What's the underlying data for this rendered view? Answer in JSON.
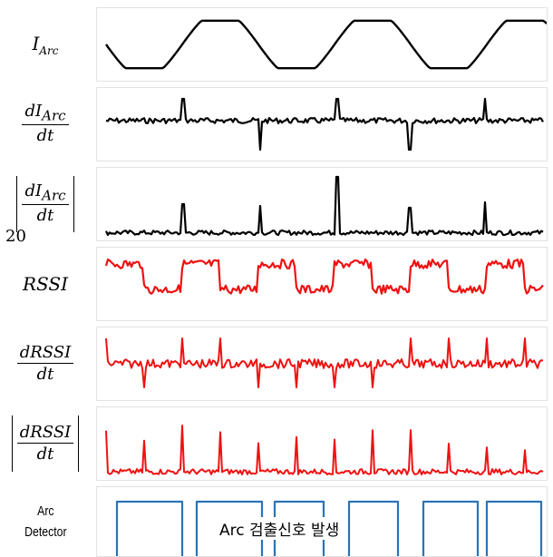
{
  "rows": [
    {
      "id": "i_arc",
      "label_main": "I",
      "label_sub": "Arc"
    },
    {
      "id": "di_arc",
      "num_main": "dI",
      "num_sub": "Arc",
      "den": "dt"
    },
    {
      "id": "abs_di_arc",
      "num_main": "dI",
      "num_sub": "Arc",
      "den": "dt"
    },
    {
      "id": "rssi",
      "label_main": "RSSI"
    },
    {
      "id": "drssi",
      "num_main": "dRSSI",
      "den": "dt"
    },
    {
      "id": "abs_drssi",
      "num_main": "dRSSI",
      "den": "dt"
    },
    {
      "id": "detector",
      "label_line1": "Arc",
      "label_line2": "Detector"
    }
  ],
  "stray_text": "20",
  "annotation": "Arc 검출신호 발생",
  "colors": {
    "current": "#000000",
    "rssi": "#ee1111",
    "detector": "#2a74b5"
  },
  "icons": []
}
